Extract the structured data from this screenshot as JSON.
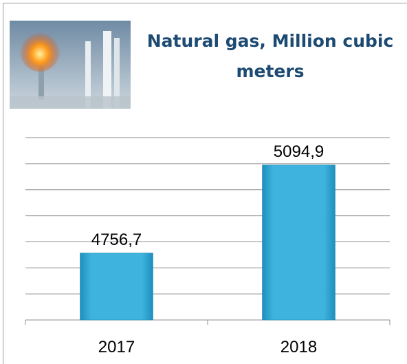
{
  "chart_data": {
    "type": "bar",
    "title": "Natural gas, Million cubic meters",
    "categories": [
      "2017",
      "2018"
    ],
    "values": [
      4756.7,
      5094.9
    ],
    "value_labels": [
      "4756,7",
      "5094,9"
    ],
    "color": "#35a9d4",
    "ylim": [
      4500,
      5200
    ],
    "yticks": [
      4500,
      4600,
      4700,
      4800,
      4900,
      5000,
      5100,
      5200
    ],
    "grid": true
  }
}
